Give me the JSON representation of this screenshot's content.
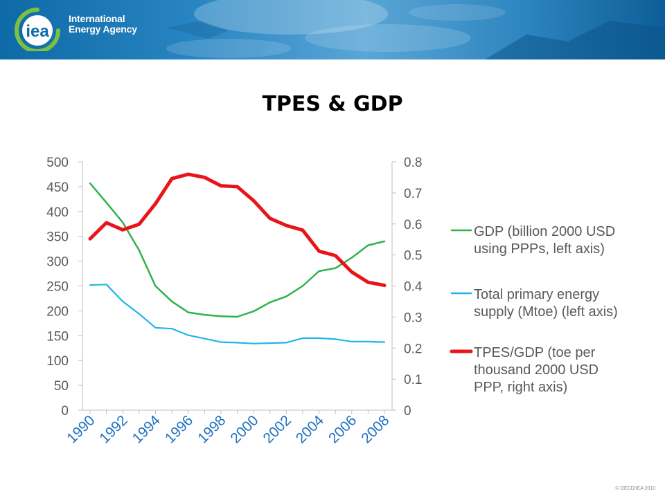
{
  "banner": {
    "logo_mark_text": "iea",
    "org_name_line1": "International",
    "org_name_line2": "Energy Agency"
  },
  "slide": {
    "title": "TPES & GDP",
    "copyright": "© OECD/IEA 2010"
  },
  "chart_data": {
    "type": "line",
    "title": "TPES & GDP",
    "x": [
      1990,
      1991,
      1992,
      1993,
      1994,
      1995,
      1996,
      1997,
      1998,
      1999,
      2000,
      2001,
      2002,
      2003,
      2004,
      2005,
      2006,
      2007,
      2008
    ],
    "x_tick_labels": [
      "1990",
      "1992",
      "1994",
      "1996",
      "1998",
      "2000",
      "2002",
      "2004",
      "2006",
      "2008"
    ],
    "left_axis": {
      "ylim": [
        0,
        500
      ],
      "ticks": [
        "0",
        "50",
        "100",
        "150",
        "200",
        "250",
        "300",
        "350",
        "400",
        "450",
        "500"
      ]
    },
    "right_axis": {
      "ylim": [
        0,
        0.8
      ],
      "ticks": [
        "0",
        "0.1",
        "0.2",
        "0.3",
        "0.4",
        "0.5",
        "0.6",
        "0.7",
        "0.8"
      ]
    },
    "grid": false,
    "legend_position": "right",
    "series": [
      {
        "name": "GDP (billion 2000 USD using PPPs, left axis)",
        "legend_lines": [
          "GDP (billion 2000 USD",
          "using PPPs, left axis)"
        ],
        "axis": "left",
        "color": "#2db34a",
        "values": [
          457,
          418,
          378,
          322,
          250,
          219,
          197,
          192,
          189,
          188,
          199,
          217,
          229,
          250,
          280,
          286,
          307,
          332,
          340
        ]
      },
      {
        "name": "Total primary energy supply (Mtoe) (left axis)",
        "legend_lines": [
          "Total primary energy",
          "supply (Mtoe) (left axis)"
        ],
        "axis": "left",
        "color": "#1fb5ea",
        "values": [
          252,
          253,
          219,
          194,
          166,
          164,
          151,
          144,
          137,
          136,
          134,
          135,
          136,
          145,
          145,
          143,
          138,
          138,
          137
        ]
      },
      {
        "name": "TPES/GDP (toe per thousand 2000 USD PPP, right axis)",
        "legend_lines": [
          "TPES/GDP (toe per",
          "thousand 2000 USD",
          "PPP, right axis)"
        ],
        "axis": "right",
        "color": "#e8141a",
        "values": [
          0.552,
          0.604,
          0.581,
          0.599,
          0.665,
          0.746,
          0.76,
          0.75,
          0.723,
          0.72,
          0.675,
          0.618,
          0.595,
          0.58,
          0.512,
          0.498,
          0.445,
          0.412,
          0.402
        ]
      }
    ]
  }
}
